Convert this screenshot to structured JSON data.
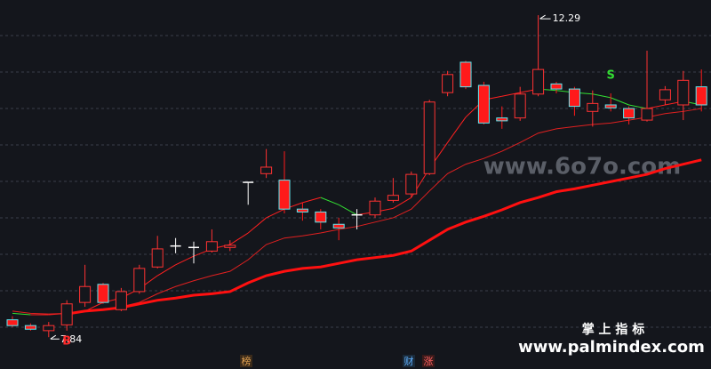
{
  "chart_data": {
    "type": "candlestick",
    "ylim": [
      7.4,
      12.5
    ],
    "grid": true,
    "up_color": "#ff3232",
    "down_color": "#ff1a1a",
    "down_edge_color": "#5fe8f0",
    "doji_color": "#ffffff",
    "open": [
      8.08,
      8.0,
      7.93,
      8.01,
      8.32,
      8.57,
      8.22,
      8.47,
      8.81,
      9.1,
      9.08,
      9.03,
      9.08,
      9.98,
      10.1,
      10.01,
      9.61,
      9.57,
      9.4,
      9.53,
      9.53,
      9.73,
      9.82,
      10.1,
      11.22,
      11.64,
      11.32,
      10.87,
      10.87,
      11.2,
      11.34,
      11.27,
      10.96,
      11.05,
      11.0,
      10.84,
      11.12,
      11.05,
      11.3
    ],
    "high": [
      8.13,
      8.03,
      8.05,
      8.35,
      8.84,
      8.59,
      8.52,
      8.84,
      9.24,
      9.21,
      9.16,
      9.33,
      9.18,
      9.98,
      10.44,
      10.41,
      9.7,
      9.61,
      9.49,
      9.61,
      9.77,
      10.04,
      10.13,
      11.12,
      11.52,
      11.66,
      11.37,
      11.03,
      11.3,
      12.29,
      11.37,
      11.3,
      11.25,
      11.21,
      11.03,
      11.8,
      11.31,
      11.52,
      11.54
    ],
    "low": [
      7.98,
      7.93,
      7.84,
      7.93,
      8.26,
      8.3,
      8.2,
      8.44,
      8.79,
      9.0,
      8.86,
      9.01,
      9.03,
      9.67,
      10.04,
      9.55,
      9.45,
      9.33,
      9.18,
      9.33,
      9.49,
      9.7,
      9.77,
      10.08,
      11.17,
      11.27,
      10.78,
      10.72,
      10.83,
      11.17,
      11.21,
      10.9,
      10.75,
      10.96,
      10.78,
      10.82,
      11.05,
      10.84,
      10.96
    ],
    "close": [
      8.0,
      7.95,
      8.0,
      8.3,
      8.54,
      8.32,
      8.47,
      8.79,
      9.06,
      9.1,
      9.08,
      9.16,
      9.11,
      9.98,
      10.19,
      9.61,
      9.57,
      9.43,
      9.35,
      9.53,
      9.72,
      9.8,
      10.09,
      11.09,
      11.47,
      11.3,
      10.8,
      10.83,
      11.2,
      11.54,
      11.27,
      11.03,
      11.07,
      11.01,
      10.87,
      11.0,
      11.26,
      11.39,
      11.05
    ],
    "moving_averages": [
      {
        "color": "#ff2020",
        "rise_color": "#ff2020",
        "fall_color": "#33e033",
        "values": [
          8.17,
          8.15,
          8.15,
          8.17,
          8.2,
          8.32,
          8.38,
          8.51,
          8.69,
          8.84,
          8.96,
          9.06,
          9.12,
          9.28,
          9.49,
          9.61,
          9.7,
          9.77,
          9.67,
          9.53,
          9.57,
          9.62,
          9.77,
          10.17,
          10.53,
          10.88,
          11.12,
          11.17,
          11.22,
          11.27,
          11.25,
          11.22,
          11.2,
          11.15,
          11.05,
          11.0,
          11.05,
          11.1,
          11.05
        ]
      },
      {
        "color": "#e02020",
        "values": [
          8.2,
          8.17,
          8.16,
          8.17,
          8.2,
          8.22,
          8.26,
          8.32,
          8.44,
          8.54,
          8.62,
          8.69,
          8.75,
          8.91,
          9.12,
          9.21,
          9.24,
          9.28,
          9.33,
          9.37,
          9.43,
          9.49,
          9.61,
          9.86,
          10.1,
          10.23,
          10.31,
          10.41,
          10.53,
          10.66,
          10.72,
          10.75,
          10.78,
          10.8,
          10.84,
          10.88,
          10.93,
          10.96,
          11.0
        ]
      },
      {
        "color": "#ff1010",
        "values": [
          null,
          null,
          null,
          8.16,
          8.2,
          8.22,
          8.25,
          8.3,
          8.35,
          8.38,
          8.42,
          8.44,
          8.47,
          8.59,
          8.69,
          8.75,
          8.79,
          8.81,
          8.86,
          8.91,
          8.94,
          8.97,
          9.03,
          9.18,
          9.33,
          9.43,
          9.51,
          9.6,
          9.7,
          9.77,
          9.85,
          9.89,
          9.94,
          9.99,
          10.04,
          10.09,
          10.17,
          10.23,
          10.29
        ]
      }
    ],
    "signals": [
      {
        "text": "B",
        "at": 3,
        "color": "#ff2a2a"
      },
      {
        "text": "S",
        "at": 33,
        "color": "#33dd33"
      }
    ]
  },
  "watermarks": {
    "site": "www.6o7o.com",
    "brand": "掌 上 指 标",
    "brand_site": "www.palmindex.com"
  },
  "footer_tags": [
    "榜",
    "财",
    "涨"
  ]
}
